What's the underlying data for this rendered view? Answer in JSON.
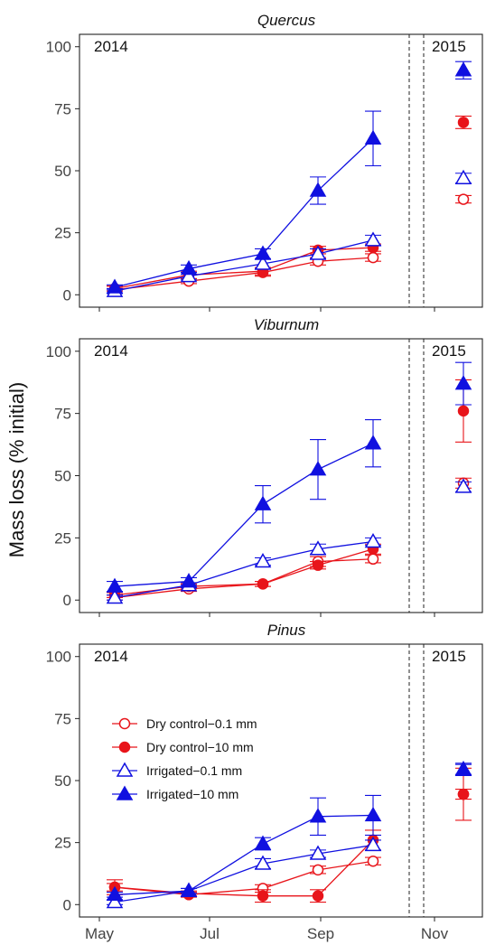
{
  "chart_data": {
    "type": "line",
    "ylabel": "Mass loss (% initial)",
    "x_ticks": [
      "May",
      "Jul",
      "Sep",
      "Nov"
    ],
    "y_ticks": [
      0,
      25,
      50,
      75,
      100
    ],
    "ylim": [
      -5,
      105
    ],
    "grid": false,
    "legend_position": "left-middle of bottom panel",
    "series_styles": [
      {
        "name": "Dry control−0.1 mm",
        "color": "#e8141a",
        "marker": "circle",
        "filled": false
      },
      {
        "name": "Dry control−10 mm",
        "color": "#e8141a",
        "marker": "circle",
        "filled": true
      },
      {
        "name": "Irrigated−0.1 mm",
        "color": "#1010e0",
        "marker": "triangle",
        "filled": false
      },
      {
        "name": "Irrigated−10 mm",
        "color": "#1010e0",
        "marker": "triangle",
        "filled": true
      }
    ],
    "panels": [
      {
        "title": "Quercus",
        "year_left": "2014",
        "year_right": "2015",
        "series": [
          {
            "name": "Dry control−0.1 mm",
            "points": [
              {
                "x": "May 11",
                "y": 2,
                "err": 1.5
              },
              {
                "x": "Jun 25",
                "y": 5.5,
                "err": 1
              },
              {
                "x": "Aug 5",
                "y": 9,
                "err": 1.5
              },
              {
                "x": "Sep 1",
                "y": 13.5,
                "err": 1.5
              },
              {
                "x": "Sep 28",
                "y": 15,
                "err": 1.5
              }
            ],
            "year2": {
              "x": "Nov 12",
              "y": 38.5,
              "err": 1.5
            }
          },
          {
            "name": "Dry control−10 mm",
            "points": [
              {
                "x": "May 11",
                "y": 2.5,
                "err": 1
              },
              {
                "x": "Jun 25",
                "y": 8,
                "err": 1.5
              },
              {
                "x": "Aug 5",
                "y": 9.5,
                "err": 1.5
              },
              {
                "x": "Sep 1",
                "y": 18,
                "err": 1.5
              },
              {
                "x": "Sep 28",
                "y": 19,
                "err": 1.5
              }
            ],
            "year2": {
              "x": "Nov 12",
              "y": 69.5,
              "err": 2.5
            }
          },
          {
            "name": "Irrigated−0.1 mm",
            "points": [
              {
                "x": "May 11",
                "y": 1.5,
                "err": 1
              },
              {
                "x": "Jun 25",
                "y": 7.5,
                "err": 1.5
              },
              {
                "x": "Aug 5",
                "y": 12.5,
                "err": 2
              },
              {
                "x": "Sep 1",
                "y": 16.5,
                "err": 2
              },
              {
                "x": "Sep 28",
                "y": 22,
                "err": 2
              }
            ],
            "year2": {
              "x": "Nov 12",
              "y": 47,
              "err": 2
            }
          },
          {
            "name": "Irrigated−10 mm",
            "points": [
              {
                "x": "May 11",
                "y": 3,
                "err": 1
              },
              {
                "x": "Jun 25",
                "y": 10.5,
                "err": 1.5
              },
              {
                "x": "Aug 5",
                "y": 16.5,
                "err": 2
              },
              {
                "x": "Sep 1",
                "y": 42,
                "err": 5.5
              },
              {
                "x": "Sep 28",
                "y": 63,
                "err": 11
              }
            ],
            "year2": {
              "x": "Nov 12",
              "y": 90.5,
              "err": 3.5
            }
          }
        ]
      },
      {
        "title": "Viburnum",
        "year_left": "2014",
        "year_right": "2015",
        "series": [
          {
            "name": "Dry control−0.1 mm",
            "points": [
              {
                "x": "May 11",
                "y": 1,
                "err": 1
              },
              {
                "x": "Jun 25",
                "y": 4.5,
                "err": 1
              },
              {
                "x": "Aug 5",
                "y": 6.5,
                "err": 1
              },
              {
                "x": "Sep 1",
                "y": 15.5,
                "err": 2
              },
              {
                "x": "Sep 28",
                "y": 16.5,
                "err": 1.5
              }
            ],
            "year2": {
              "x": "Nov 12",
              "y": 47,
              "err": 2
            }
          },
          {
            "name": "Dry control−10 mm",
            "points": [
              {
                "x": "May 11",
                "y": 2,
                "err": 1
              },
              {
                "x": "Jun 25",
                "y": 5.5,
                "err": 1
              },
              {
                "x": "Aug 5",
                "y": 6.5,
                "err": 1
              },
              {
                "x": "Sep 1",
                "y": 14,
                "err": 1.5
              },
              {
                "x": "Sep 28",
                "y": 20.5,
                "err": 2
              }
            ],
            "year2": {
              "x": "Nov 12",
              "y": 76,
              "err": 12.5
            }
          },
          {
            "name": "Irrigated−0.1 mm",
            "points": [
              {
                "x": "May 11",
                "y": 1,
                "err": 1
              },
              {
                "x": "Jun 25",
                "y": 6,
                "err": 1
              },
              {
                "x": "Aug 5",
                "y": 15.5,
                "err": 1.5
              },
              {
                "x": "Sep 1",
                "y": 20.5,
                "err": 2
              },
              {
                "x": "Sep 28",
                "y": 23.5,
                "err": 1.5
              }
            ],
            "year2": {
              "x": "Nov 12",
              "y": 45.5,
              "err": 2
            }
          },
          {
            "name": "Irrigated−10 mm",
            "points": [
              {
                "x": "May 11",
                "y": 5.5,
                "err": 2
              },
              {
                "x": "Jun 25",
                "y": 7.5,
                "err": 1.5
              },
              {
                "x": "Aug 5",
                "y": 38.5,
                "err": 7.5
              },
              {
                "x": "Sep 1",
                "y": 52.5,
                "err": 12
              },
              {
                "x": "Sep 28",
                "y": 63,
                "err": 9.5
              }
            ],
            "year2": {
              "x": "Nov 12",
              "y": 87,
              "err": 8.5
            }
          }
        ]
      },
      {
        "title": "Pinus",
        "year_left": "2014",
        "year_right": "2015",
        "series": [
          {
            "name": "Dry control−0.1 mm",
            "points": [
              {
                "x": "May 11",
                "y": 7,
                "err": 3
              },
              {
                "x": "Jun 25",
                "y": 4,
                "err": 1
              },
              {
                "x": "Aug 5",
                "y": 6.5,
                "err": 1.5
              },
              {
                "x": "Sep 1",
                "y": 14,
                "err": 1.5
              },
              {
                "x": "Sep 28",
                "y": 17.5,
                "err": 1.5
              }
            ],
            "year2": {
              "x": "Nov 12",
              "y": 44.5,
              "err": 2
            }
          },
          {
            "name": "Dry control−10 mm",
            "points": [
              {
                "x": "May 11",
                "y": 7,
                "err": 1.5
              },
              {
                "x": "Jun 25",
                "y": 4.5,
                "err": 1
              },
              {
                "x": "Aug 5",
                "y": 3.5,
                "err": 2.5
              },
              {
                "x": "Sep 1",
                "y": 3.5,
                "err": 2.5
              },
              {
                "x": "Sep 28",
                "y": 26,
                "err": 4
              }
            ],
            "year2": {
              "x": "Nov 12",
              "y": 44.5,
              "err": 10.5
            }
          },
          {
            "name": "Irrigated−0.1 mm",
            "points": [
              {
                "x": "May 11",
                "y": 1,
                "err": 1
              },
              {
                "x": "Jun 25",
                "y": 5.5,
                "err": 1
              },
              {
                "x": "Aug 5",
                "y": 16.5,
                "err": 2
              },
              {
                "x": "Sep 1",
                "y": 20.5,
                "err": 1.5
              },
              {
                "x": "Sep 28",
                "y": 24,
                "err": 2
              }
            ],
            "year2": {
              "x": "Nov 12",
              "y": 54.5,
              "err": 2
            }
          },
          {
            "name": "Irrigated−10 mm",
            "points": [
              {
                "x": "May 11",
                "y": 4,
                "err": 1
              },
              {
                "x": "Jun 25",
                "y": 5.5,
                "err": 1
              },
              {
                "x": "Aug 5",
                "y": 24.5,
                "err": 2.5
              },
              {
                "x": "Sep 1",
                "y": 35.5,
                "err": 7.5
              },
              {
                "x": "Sep 28",
                "y": 36,
                "err": 8
              }
            ],
            "year2": {
              "x": "Nov 12",
              "y": 54.5,
              "err": 2.5
            }
          }
        ]
      }
    ]
  }
}
